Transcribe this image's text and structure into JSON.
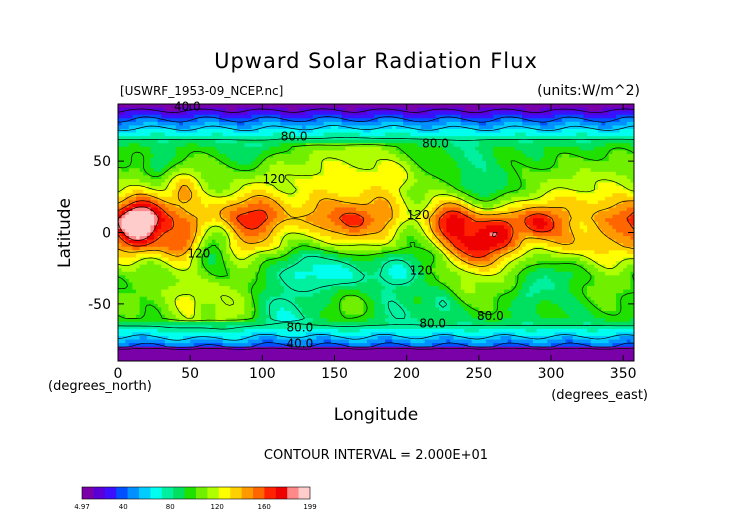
{
  "chart_data": {
    "type": "heatmap",
    "title": "Upward Solar Radiation Flux",
    "subtitle_left": "[USWRF_1953-09_NCEP.nc]",
    "units": "(units:W/m^2)",
    "xlabel": "Longitude",
    "ylabel": "Latitude",
    "x_unit_note": "(degrees_east)",
    "y_unit_note": "(degrees_north)",
    "xlim": [
      0,
      357.5
    ],
    "ylim": [
      -90,
      90
    ],
    "xticks": [
      "0",
      "50",
      "100",
      "150",
      "200",
      "250",
      "300",
      "350"
    ],
    "yticks": [
      "50",
      "0",
      "-50"
    ],
    "contour_interval_text": "CONTOUR INTERVAL = 2.000E+01",
    "contour_labels": [
      {
        "text": "40.0",
        "lon": 48,
        "lat": 88
      },
      {
        "text": "80.0",
        "lon": 122,
        "lat": 67
      },
      {
        "text": "80.0",
        "lon": 220,
        "lat": 62
      },
      {
        "text": "120",
        "lon": 108,
        "lat": 37
      },
      {
        "text": "120",
        "lon": 208,
        "lat": 12
      },
      {
        "text": "120",
        "lon": 56,
        "lat": -15
      },
      {
        "text": "120",
        "lon": 210,
        "lat": -27
      },
      {
        "text": "80.0",
        "lon": 126,
        "lat": -67
      },
      {
        "text": "80.0",
        "lon": 218,
        "lat": -64
      },
      {
        "text": "80.0",
        "lon": 258,
        "lat": -59
      },
      {
        "text": "40.0",
        "lon": 126,
        "lat": -78
      }
    ],
    "colorbar": {
      "min_label": "4.97",
      "max_label": "199",
      "tick_labels": [
        "40",
        "80",
        "120",
        "160"
      ],
      "ticks": [
        40,
        80,
        120,
        160
      ],
      "min": 4.97,
      "max": 199,
      "colors": [
        "#7a00a8",
        "#5a00d6",
        "#3a10ff",
        "#0050ff",
        "#0090ff",
        "#00ccff",
        "#00ffee",
        "#00f0a0",
        "#00e060",
        "#20e000",
        "#70f000",
        "#b0ff00",
        "#ffff00",
        "#ffd000",
        "#ff9900",
        "#ff6600",
        "#ff2200",
        "#ee0000",
        "#ff8888",
        "#ffcccc"
      ]
    },
    "description_of_field": "Gridded field, high values (120-199 W/m^2) in tropics, lower (80-120) in midlatitudes, 40-80 in high latitudes, low (<40) near poles"
  }
}
